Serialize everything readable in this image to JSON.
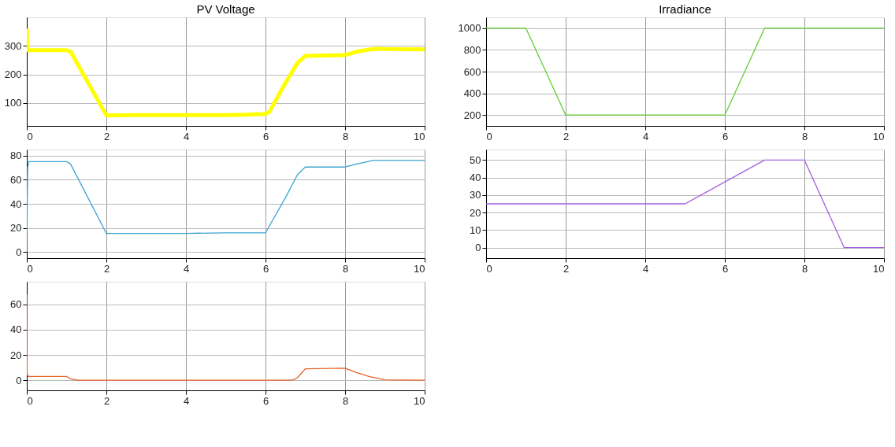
{
  "chart_data": [
    {
      "type": "line",
      "title": "PV Voltage",
      "x": [
        0,
        0.01,
        0.03,
        1,
        1.1,
        2,
        2.1,
        3,
        4,
        5,
        5.5,
        6,
        6.1,
        6.5,
        6.8,
        7,
        8,
        8.3,
        8.6,
        8.8,
        9,
        10
      ],
      "xlim": [
        0,
        10
      ],
      "xticks": [
        0,
        2,
        4,
        6,
        8,
        10
      ],
      "ylim": [
        20,
        400
      ],
      "yticks": [
        100,
        200,
        300
      ],
      "grid": true,
      "series": [
        {
          "color": "#ffff00",
          "values": [
            360,
            300,
            285,
            285,
            280,
            57,
            57,
            58,
            58,
            58,
            59,
            62,
            70,
            170,
            240,
            265,
            268,
            280,
            287,
            290,
            289,
            288
          ]
        }
      ]
    },
    {
      "type": "line",
      "title": "Irradiance",
      "x": [
        0,
        1,
        2,
        6,
        7,
        10
      ],
      "xlim": [
        0,
        10
      ],
      "xticks": [
        0,
        2,
        4,
        6,
        8,
        10
      ],
      "ylim": [
        100,
        1100
      ],
      "yticks": [
        200,
        400,
        600,
        800,
        1000
      ],
      "grid": true,
      "series": [
        {
          "color": "#66cc33",
          "values": [
            1000,
            1000,
            200,
            200,
            1000,
            1000
          ]
        }
      ]
    },
    {
      "type": "line",
      "x": [
        0,
        0.02,
        0.05,
        1,
        1.1,
        2,
        3,
        4,
        5,
        6,
        6.5,
        6.8,
        7,
        8,
        8.3,
        8.7,
        10
      ],
      "xlim": [
        0,
        10
      ],
      "xticks": [
        0,
        2,
        4,
        6,
        8,
        10
      ],
      "ylim": [
        -5,
        85
      ],
      "yticks": [
        0,
        20,
        40,
        60,
        80
      ],
      "grid": true,
      "series": [
        {
          "color": "#3ba3cf",
          "values": [
            0,
            70,
            75,
            75,
            73,
            15.5,
            15.5,
            15.5,
            16,
            16,
            45,
            64,
            70.5,
            70.5,
            73,
            76,
            76
          ]
        }
      ]
    },
    {
      "type": "line",
      "x": [
        0,
        5,
        7,
        8,
        9,
        10
      ],
      "xlim": [
        0,
        10
      ],
      "xticks": [
        0,
        2,
        4,
        6,
        8,
        10
      ],
      "ylim": [
        -6,
        56
      ],
      "yticks": [
        0,
        10,
        20,
        30,
        40,
        50
      ],
      "grid": true,
      "series": [
        {
          "color": "#a35ee0",
          "values": [
            25,
            25,
            50,
            50,
            0,
            0
          ]
        }
      ]
    },
    {
      "type": "line",
      "x": [
        0,
        0.005,
        0.01,
        0.03,
        0.05,
        1,
        1.1,
        1.3,
        6.5,
        6.7,
        6.8,
        7,
        8,
        8.3,
        8.6,
        9,
        10
      ],
      "xlim": [
        0,
        10
      ],
      "xticks": [
        0,
        2,
        4,
        6,
        8,
        10
      ],
      "ylim": [
        -8,
        78
      ],
      "yticks": [
        0,
        20,
        40,
        60
      ],
      "grid": true,
      "series": [
        {
          "color": "#e8632a",
          "values": [
            68,
            15,
            5,
            3,
            3,
            3,
            1,
            0,
            0,
            0.3,
            2,
            9,
            9.5,
            6,
            3,
            0.3,
            0
          ]
        }
      ]
    }
  ]
}
